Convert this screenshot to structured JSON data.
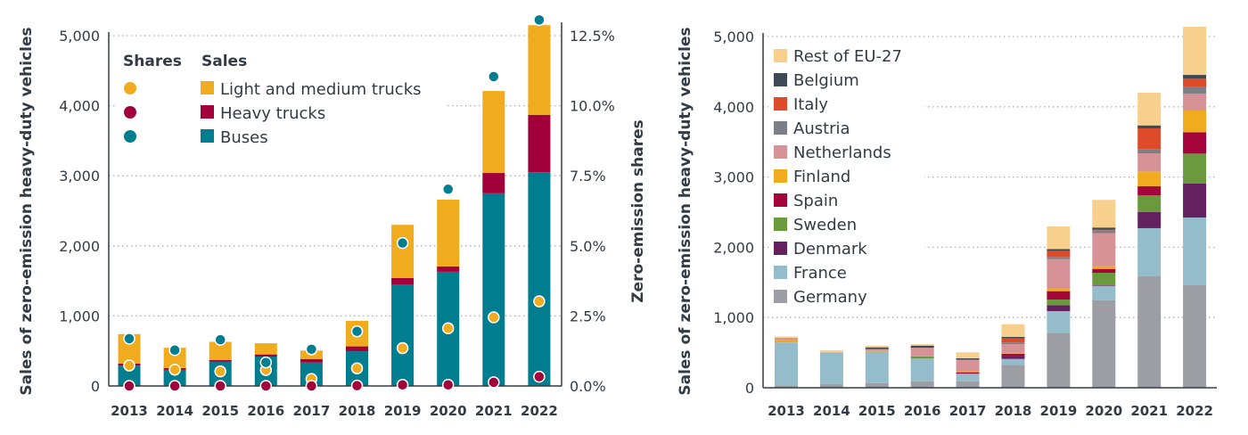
{
  "chart_data": [
    {
      "type": "bar",
      "stacked": true,
      "categories": [
        "2013",
        "2014",
        "2015",
        "2016",
        "2017",
        "2018",
        "2019",
        "2020",
        "2021",
        "2022"
      ],
      "ylabel": "Sales of zero-emission heavy-duty vehicles",
      "ylabel_right": "Zero-emission shares",
      "ylim": [
        0,
        5000
      ],
      "ylim_right": [
        0,
        12.5
      ],
      "yticks": [
        "0",
        "1,000",
        "2,000",
        "3,000",
        "4,000",
        "5,000"
      ],
      "yticks_right": [
        "0.0%",
        "2.5%",
        "5.0%",
        "7.5%",
        "10.0%",
        "12.5%"
      ],
      "grid": true,
      "legend": {
        "shares_title": "Shares",
        "sales_title": "Sales",
        "placement": "top-left"
      },
      "series": [
        {
          "name": "Buses",
          "color": "#007e8f",
          "values": [
            290,
            230,
            350,
            420,
            335,
            495,
            1450,
            1630,
            2750,
            3050
          ]
        },
        {
          "name": "Heavy trucks",
          "color": "#a1003a",
          "values": [
            30,
            25,
            20,
            30,
            50,
            70,
            90,
            75,
            290,
            820
          ]
        },
        {
          "name": "Light and medium trucks",
          "color": "#f1ab1e",
          "values": [
            420,
            290,
            260,
            160,
            120,
            365,
            760,
            955,
            1170,
            1280
          ]
        }
      ],
      "shares": [
        {
          "name": "Light and medium trucks",
          "color": "#f1ab1e",
          "values": [
            0.73,
            0.58,
            0.52,
            0.57,
            0.25,
            0.63,
            1.35,
            2.06,
            2.45,
            3.02
          ]
        },
        {
          "name": "Heavy trucks",
          "color": "#a1003a",
          "values": [
            0.0,
            0.0,
            0.0,
            0.0,
            0.0,
            0.01,
            0.04,
            0.04,
            0.13,
            0.33
          ]
        },
        {
          "name": "Buses",
          "color": "#007e8f",
          "values": [
            1.69,
            1.28,
            1.65,
            0.84,
            1.31,
            1.95,
            5.1,
            7.02,
            11.04,
            13.06
          ]
        }
      ]
    },
    {
      "type": "bar",
      "stacked": true,
      "categories": [
        "2013",
        "2014",
        "2015",
        "2016",
        "2017",
        "2018",
        "2019",
        "2020",
        "2021",
        "2022"
      ],
      "ylabel": "Sales of zero-emission heavy-duty vehicles",
      "ylim": [
        0,
        5000
      ],
      "yticks": [
        "0",
        "1,000",
        "2,000",
        "3,000",
        "4,000",
        "5,000"
      ],
      "grid": true,
      "legend": {
        "placement": "top-left"
      },
      "series": [
        {
          "name": "Germany",
          "color": "#9c9ea3",
          "values": [
            35,
            55,
            65,
            90,
            90,
            325,
            783,
            1248,
            1586,
            1459
          ]
        },
        {
          "name": "France",
          "color": "#94bccb",
          "values": [
            610,
            450,
            450,
            325,
            110,
            85,
            308,
            203,
            686,
            965
          ]
        },
        {
          "name": "Denmark",
          "color": "#63215f",
          "values": [
            0,
            0,
            0,
            0,
            0,
            35,
            85,
            8,
            232,
            482
          ]
        },
        {
          "name": "Sweden",
          "color": "#6a9a3d",
          "values": [
            0,
            0,
            0,
            30,
            0,
            0,
            80,
            178,
            237,
            427
          ]
        },
        {
          "name": "Spain",
          "color": "#a4063c",
          "values": [
            0,
            0,
            0,
            0,
            20,
            40,
            119,
            55,
            127,
            305
          ]
        },
        {
          "name": "Finland",
          "color": "#f1ab1e",
          "values": [
            30,
            0,
            10,
            5,
            15,
            5,
            34,
            38,
            211,
            309
          ]
        },
        {
          "name": "Netherlands",
          "color": "#d69296",
          "values": [
            35,
            0,
            25,
            120,
            165,
            130,
            423,
            470,
            258,
            241
          ]
        },
        {
          "name": "Austria",
          "color": "#7d7f87",
          "values": [
            0,
            0,
            0,
            0,
            0,
            25,
            29,
            42,
            60,
            97
          ]
        },
        {
          "name": "Italy",
          "color": "#dd4b2a",
          "values": [
            0,
            0,
            0,
            0,
            0,
            60,
            85,
            10,
            296,
            114
          ]
        },
        {
          "name": "Belgium",
          "color": "#3d4a55",
          "values": [
            0,
            0,
            25,
            30,
            20,
            20,
            29,
            29,
            42,
            55
          ]
        },
        {
          "name": "Rest of EU-27",
          "color": "#f8d08e",
          "values": [
            20,
            30,
            25,
            20,
            85,
            180,
            322,
            394,
            465,
            685
          ]
        }
      ]
    }
  ]
}
